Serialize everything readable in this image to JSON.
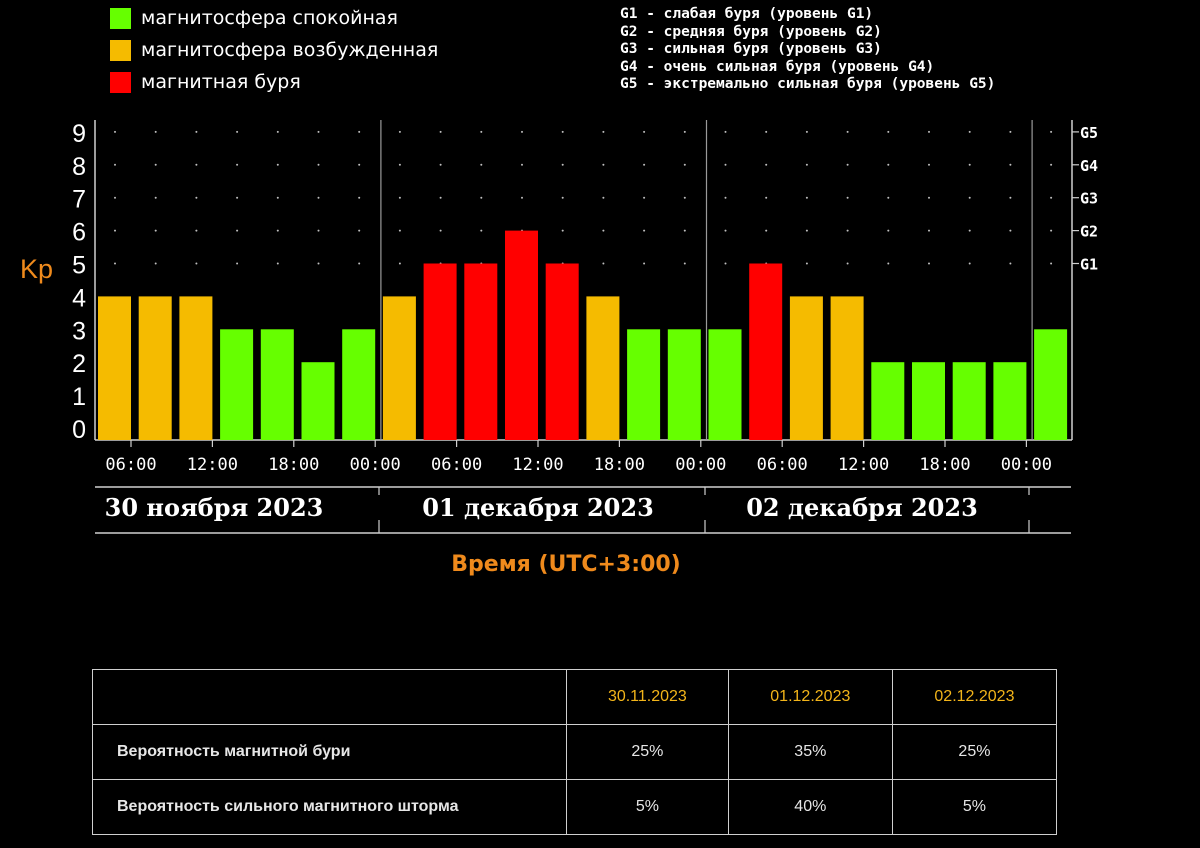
{
  "legend": [
    {
      "label": "магнитосфера спокойная",
      "color": "#66ff00"
    },
    {
      "label": "магнитосфера возбужденная",
      "color": "#f5bb00"
    },
    {
      "label": "магнитная буря",
      "color": "#ff0000"
    }
  ],
  "storm_levels": [
    "G1 - слабая буря (уровень G1)",
    "G2 - средняя буря (уровень G2)",
    "G3 - сильная буря (уровень G3)",
    "G4 - очень сильная буря (уровень G4)",
    "G5 - экстремально сильная буря (уровень G5)"
  ],
  "chart_data": {
    "type": "bar",
    "ylabel": "Kp",
    "xlabel": "Время (UTC+3:00)",
    "ylim": [
      0,
      9
    ],
    "yticks": [
      "0",
      "1",
      "2",
      "3",
      "4",
      "5",
      "6",
      "7",
      "8",
      "9"
    ],
    "right_ticks": [
      {
        "label": "G1",
        "kp": 5
      },
      {
        "label": "G2",
        "kp": 6
      },
      {
        "label": "G3",
        "kp": 7
      },
      {
        "label": "G4",
        "kp": 8
      },
      {
        "label": "G5",
        "kp": 9
      }
    ],
    "xtick_labels": [
      "06:00",
      "12:00",
      "18:00",
      "00:00",
      "06:00",
      "12:00",
      "18:00",
      "00:00",
      "06:00",
      "12:00",
      "18:00",
      "00:00"
    ],
    "days": [
      "30 ноября 2023",
      "01 декабря 2023",
      "02 декабря 2023"
    ],
    "values": [
      4,
      4,
      4,
      3,
      3,
      2,
      3,
      4,
      5,
      5,
      6,
      5,
      4,
      3,
      3,
      3,
      5,
      4,
      4,
      2,
      2,
      2,
      2,
      3
    ],
    "colors": {
      "quiet": "#66ff00",
      "active": "#f5bb00",
      "storm": "#ff0000"
    },
    "grid": true
  },
  "table": {
    "dates": [
      "30.11.2023",
      "01.12.2023",
      "02.12.2023"
    ],
    "rows": [
      {
        "label": "Вероятность магнитной бури",
        "values": [
          "25%",
          "35%",
          "25%"
        ]
      },
      {
        "label": "Вероятность сильного магнитного шторма",
        "values": [
          "5%",
          "40%",
          "5%"
        ]
      }
    ]
  }
}
